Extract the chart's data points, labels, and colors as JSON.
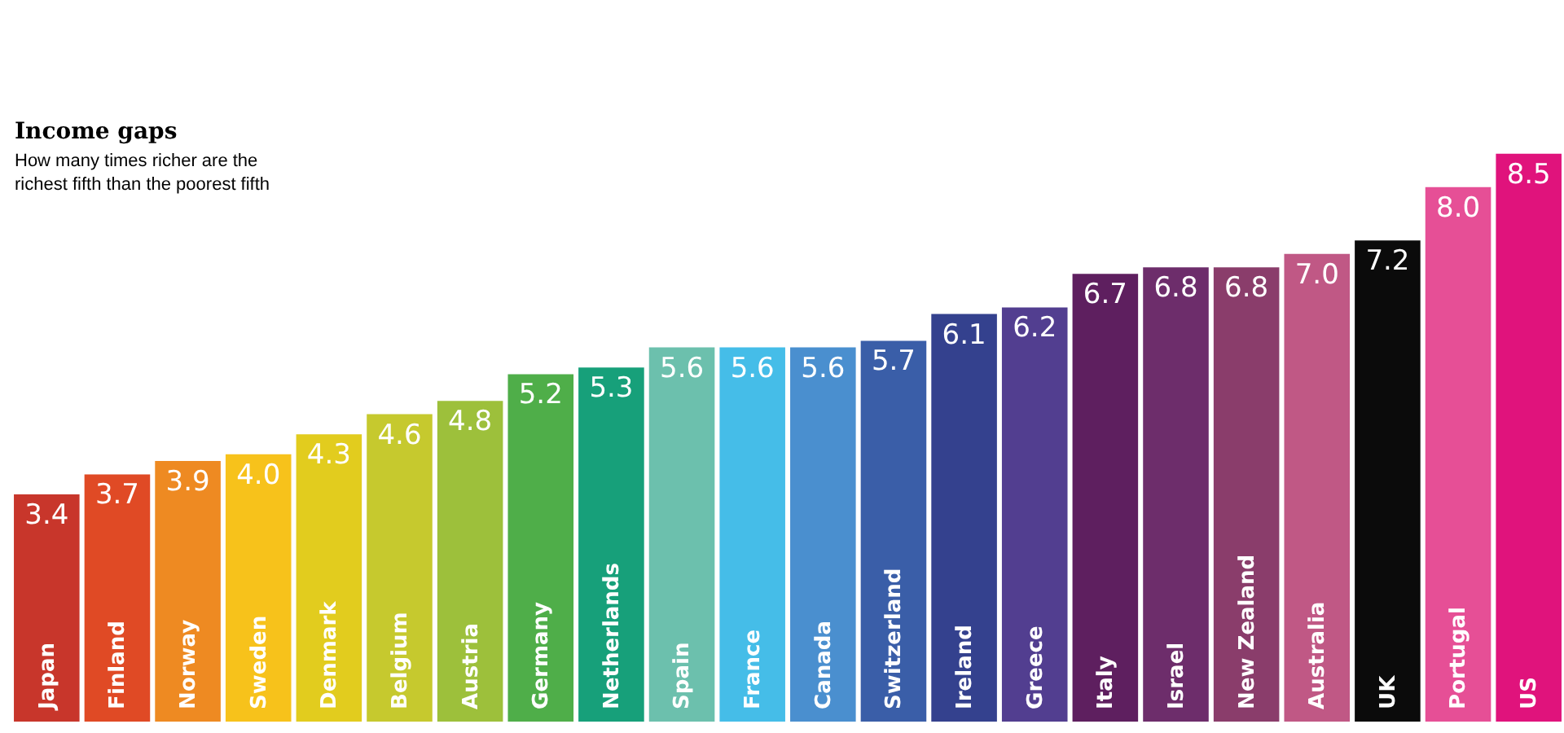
{
  "chart_data": {
    "type": "bar",
    "title": "Income gaps",
    "subtitle": "How many times richer are the\nrichest fifth than the poorest fifth",
    "categories": [
      "Japan",
      "Finland",
      "Norway",
      "Sweden",
      "Denmark",
      "Belgium",
      "Austria",
      "Germany",
      "Netherlands",
      "Spain",
      "France",
      "Canada",
      "Switzerland",
      "Ireland",
      "Greece",
      "Italy",
      "Israel",
      "New Zealand",
      "Australia",
      "UK",
      "Portugal",
      "US"
    ],
    "values": [
      3.4,
      3.7,
      3.9,
      4.0,
      4.3,
      4.6,
      4.8,
      5.2,
      5.3,
      5.6,
      5.6,
      5.6,
      5.7,
      6.1,
      6.2,
      6.7,
      6.8,
      6.8,
      7.0,
      7.2,
      8.0,
      8.5
    ],
    "colors": [
      "#c8362b",
      "#e04a25",
      "#ee8a22",
      "#f7c21b",
      "#e2cc1e",
      "#c6c92e",
      "#9dc03b",
      "#4fae49",
      "#17a07a",
      "#6cc0ad",
      "#45bde8",
      "#4a8fcf",
      "#3a5ea8",
      "#34418e",
      "#523e90",
      "#5e1f5f",
      "#6d2d6b",
      "#8a3d6b",
      "#c05885",
      "#0b0b0b",
      "#e64f96",
      "#e0137c"
    ],
    "value_labels": [
      "3.4",
      "3.7",
      "3.9",
      "4.0",
      "4.3",
      "4.6",
      "4.8",
      "5.2",
      "5.3",
      "5.6",
      "5.6",
      "5.6",
      "5.7",
      "6.1",
      "6.2",
      "6.7",
      "6.8",
      "6.8",
      "7.0",
      "7.2",
      "8.0",
      "8.5"
    ]
  }
}
